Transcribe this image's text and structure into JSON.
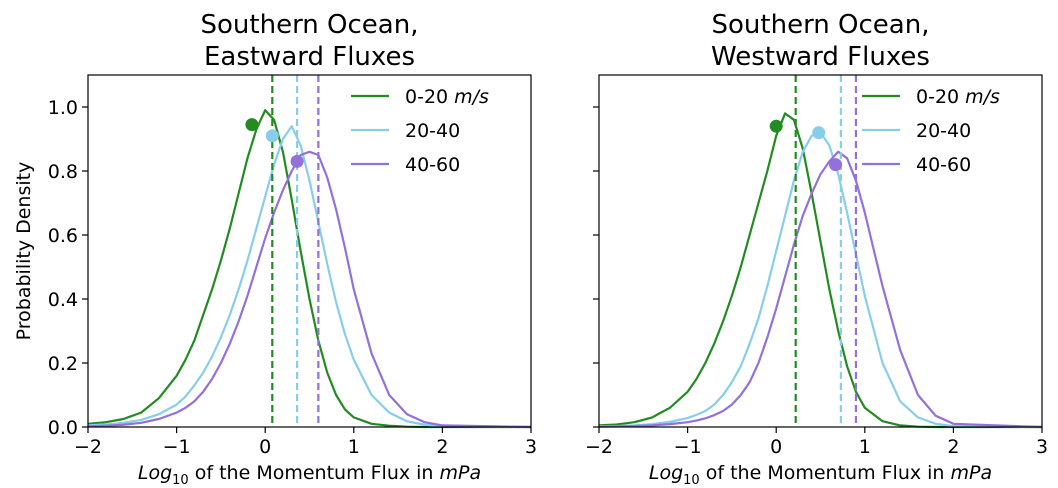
{
  "chart_data": [
    {
      "type": "line",
      "title_lines": [
        "Southern Ocean,",
        "Eastward Fluxes"
      ],
      "ylabel": "Probability Density",
      "xlabel_prefix": "Log",
      "xlabel_sub": "10",
      "xlabel_mid": " of the Momentum Flux in ",
      "xlabel_unit": "mPa",
      "xlim": [
        -2,
        3
      ],
      "ylim": [
        0,
        1.1
      ],
      "xticks": [
        -2,
        -1,
        0,
        1,
        2,
        3
      ],
      "xtick_labels": [
        "−2",
        "−1",
        "0",
        "1",
        "2",
        "3"
      ],
      "yticks": [
        0,
        0.2,
        0.4,
        0.6,
        0.8,
        1.0
      ],
      "ytick_labels": [
        "0.0",
        "0.2",
        "0.4",
        "0.6",
        "0.8",
        "1.0"
      ],
      "legend": "top-right",
      "grid": false,
      "series": [
        {
          "name": "0-20",
          "name_unit": "m/s",
          "color": "#228b22",
          "x": [
            -2.0,
            -1.8,
            -1.6,
            -1.4,
            -1.2,
            -1.0,
            -0.9,
            -0.8,
            -0.7,
            -0.6,
            -0.5,
            -0.4,
            -0.3,
            -0.2,
            -0.1,
            0.0,
            0.1,
            0.2,
            0.3,
            0.4,
            0.5,
            0.6,
            0.7,
            0.8,
            0.9,
            1.0,
            1.2,
            1.4,
            1.6,
            1.8,
            2.0,
            3.0
          ],
          "y": [
            0.01,
            0.015,
            0.025,
            0.045,
            0.09,
            0.16,
            0.21,
            0.27,
            0.35,
            0.43,
            0.52,
            0.62,
            0.73,
            0.84,
            0.93,
            0.99,
            0.96,
            0.86,
            0.71,
            0.55,
            0.4,
            0.27,
            0.17,
            0.1,
            0.055,
            0.03,
            0.01,
            0.004,
            0.001,
            0.0,
            0.0,
            0.0
          ],
          "marker": [
            -0.15,
            0.945
          ],
          "vline": 0.08
        },
        {
          "name": "20-40",
          "name_unit": "",
          "color": "#87ceeb",
          "x": [
            -2.0,
            -1.8,
            -1.6,
            -1.4,
            -1.2,
            -1.0,
            -0.9,
            -0.8,
            -0.7,
            -0.6,
            -0.5,
            -0.4,
            -0.3,
            -0.2,
            -0.1,
            0.0,
            0.1,
            0.2,
            0.3,
            0.4,
            0.5,
            0.6,
            0.7,
            0.8,
            0.9,
            1.0,
            1.2,
            1.4,
            1.6,
            1.8,
            2.0,
            3.0
          ],
          "y": [
            0.005,
            0.008,
            0.013,
            0.022,
            0.04,
            0.07,
            0.095,
            0.13,
            0.17,
            0.22,
            0.28,
            0.35,
            0.43,
            0.52,
            0.62,
            0.72,
            0.82,
            0.9,
            0.94,
            0.88,
            0.77,
            0.64,
            0.51,
            0.39,
            0.29,
            0.21,
            0.1,
            0.045,
            0.018,
            0.007,
            0.002,
            0.0
          ],
          "marker": [
            0.08,
            0.91
          ],
          "vline": 0.36
        },
        {
          "name": "40-60",
          "name_unit": "",
          "color": "#9370db",
          "x": [
            -2.0,
            -1.8,
            -1.6,
            -1.4,
            -1.2,
            -1.0,
            -0.9,
            -0.8,
            -0.7,
            -0.6,
            -0.5,
            -0.4,
            -0.3,
            -0.2,
            -0.1,
            0.0,
            0.1,
            0.2,
            0.3,
            0.4,
            0.5,
            0.6,
            0.7,
            0.8,
            0.9,
            1.0,
            1.2,
            1.4,
            1.6,
            1.8,
            2.0,
            3.0
          ],
          "y": [
            0.002,
            0.004,
            0.007,
            0.013,
            0.025,
            0.045,
            0.06,
            0.08,
            0.11,
            0.15,
            0.2,
            0.26,
            0.33,
            0.41,
            0.5,
            0.59,
            0.67,
            0.74,
            0.8,
            0.85,
            0.86,
            0.85,
            0.78,
            0.68,
            0.56,
            0.43,
            0.23,
            0.1,
            0.04,
            0.015,
            0.005,
            0.0
          ],
          "marker": [
            0.36,
            0.83
          ],
          "vline": 0.6
        }
      ]
    },
    {
      "type": "line",
      "title_lines": [
        "Southern Ocean,",
        "Westward Fluxes"
      ],
      "ylabel": "",
      "xlabel_prefix": "Log",
      "xlabel_sub": "10",
      "xlabel_mid": " of the Momentum Flux in ",
      "xlabel_unit": "mPa",
      "xlim": [
        -2,
        3
      ],
      "ylim": [
        0,
        1.1
      ],
      "xticks": [
        -2,
        -1,
        0,
        1,
        2,
        3
      ],
      "xtick_labels": [
        "−2",
        "−1",
        "0",
        "1",
        "2",
        "3"
      ],
      "yticks": [
        0,
        0.2,
        0.4,
        0.6,
        0.8,
        1.0
      ],
      "ytick_labels": [
        "",
        "",
        "",
        "",
        "",
        ""
      ],
      "legend": "top-right",
      "grid": false,
      "series": [
        {
          "name": "0-20",
          "name_unit": "m/s",
          "color": "#228b22",
          "x": [
            -2.0,
            -1.8,
            -1.6,
            -1.4,
            -1.2,
            -1.0,
            -0.9,
            -0.8,
            -0.7,
            -0.6,
            -0.5,
            -0.4,
            -0.3,
            -0.2,
            -0.1,
            0.0,
            0.1,
            0.2,
            0.3,
            0.4,
            0.5,
            0.6,
            0.7,
            0.8,
            0.9,
            1.0,
            1.2,
            1.4,
            1.6,
            1.8,
            2.0,
            3.0
          ],
          "y": [
            0.005,
            0.008,
            0.015,
            0.03,
            0.06,
            0.11,
            0.15,
            0.2,
            0.26,
            0.33,
            0.41,
            0.5,
            0.6,
            0.7,
            0.8,
            0.91,
            0.98,
            0.96,
            0.87,
            0.73,
            0.58,
            0.43,
            0.3,
            0.19,
            0.11,
            0.06,
            0.018,
            0.005,
            0.001,
            0.0,
            0.0,
            0.0
          ],
          "marker": [
            0.0,
            0.94
          ],
          "vline": 0.22
        },
        {
          "name": "20-40",
          "name_unit": "",
          "color": "#87ceeb",
          "x": [
            -2.0,
            -1.8,
            -1.6,
            -1.4,
            -1.2,
            -1.0,
            -0.9,
            -0.8,
            -0.7,
            -0.6,
            -0.5,
            -0.4,
            -0.3,
            -0.2,
            -0.1,
            0.0,
            0.1,
            0.2,
            0.3,
            0.4,
            0.5,
            0.6,
            0.7,
            0.8,
            0.9,
            1.0,
            1.2,
            1.4,
            1.6,
            1.8,
            2.0,
            3.0
          ],
          "y": [
            0.002,
            0.003,
            0.005,
            0.009,
            0.016,
            0.028,
            0.038,
            0.05,
            0.07,
            0.1,
            0.14,
            0.19,
            0.26,
            0.34,
            0.44,
            0.55,
            0.66,
            0.77,
            0.86,
            0.91,
            0.92,
            0.88,
            0.79,
            0.67,
            0.54,
            0.41,
            0.2,
            0.08,
            0.03,
            0.01,
            0.003,
            0.0
          ],
          "marker": [
            0.48,
            0.92
          ],
          "vline": 0.73
        },
        {
          "name": "40-60",
          "name_unit": "",
          "color": "#9370db",
          "x": [
            -2.0,
            -1.8,
            -1.6,
            -1.4,
            -1.2,
            -1.0,
            -0.9,
            -0.8,
            -0.7,
            -0.6,
            -0.5,
            -0.4,
            -0.3,
            -0.2,
            -0.1,
            0.0,
            0.1,
            0.2,
            0.3,
            0.4,
            0.5,
            0.6,
            0.7,
            0.8,
            0.9,
            1.0,
            1.2,
            1.4,
            1.6,
            1.8,
            2.0,
            3.0
          ],
          "y": [
            0.001,
            0.002,
            0.003,
            0.005,
            0.009,
            0.015,
            0.02,
            0.027,
            0.037,
            0.05,
            0.07,
            0.1,
            0.14,
            0.2,
            0.28,
            0.37,
            0.47,
            0.57,
            0.66,
            0.73,
            0.79,
            0.83,
            0.86,
            0.84,
            0.77,
            0.67,
            0.44,
            0.24,
            0.1,
            0.035,
            0.01,
            0.0
          ],
          "marker": [
            0.67,
            0.82
          ],
          "vline": 0.9
        }
      ]
    }
  ]
}
